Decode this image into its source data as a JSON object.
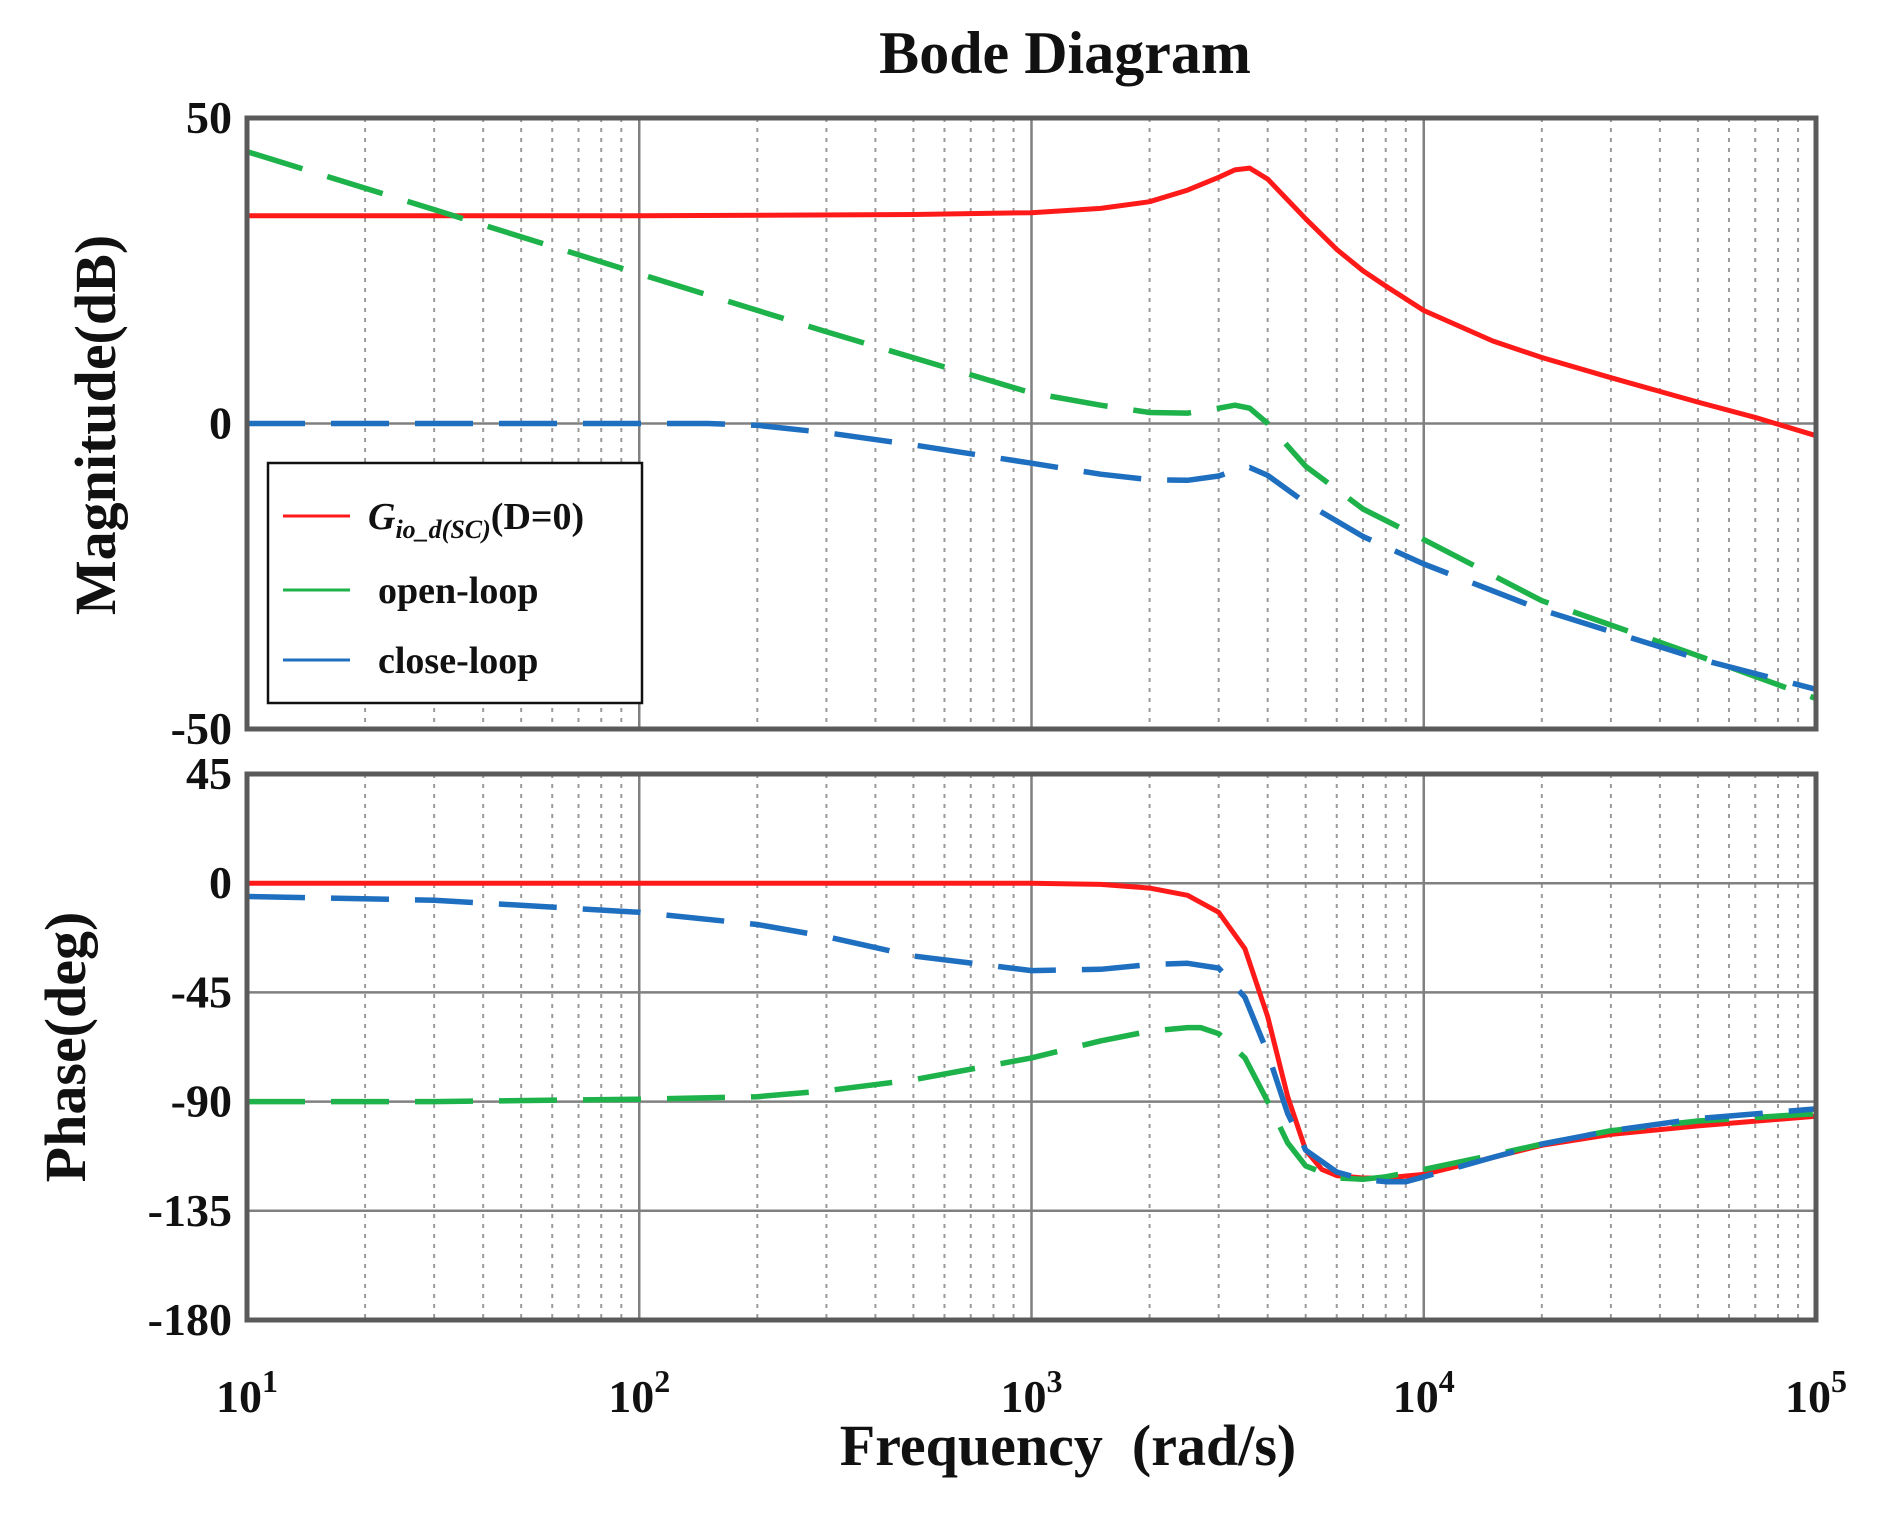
{
  "chart_data": {
    "type": "line",
    "title": "Bode Diagram",
    "xlabel": "Frequency  (rad/s)",
    "xscale": "log",
    "xlim": [
      10,
      100000
    ],
    "x_ticks": [
      {
        "base": "10",
        "exp": "1"
      },
      {
        "base": "10",
        "exp": "2"
      },
      {
        "base": "10",
        "exp": "3"
      },
      {
        "base": "10",
        "exp": "4"
      },
      {
        "base": "10",
        "exp": "5"
      }
    ],
    "colors": {
      "gio": "#ff1a1a",
      "open_loop": "#1db24a",
      "close_loop": "#1f6fc0",
      "grid": "#808080"
    },
    "legend": {
      "position": "lower-left",
      "entries": [
        {
          "series": "gio",
          "main": "G",
          "sub": "io_d(SC)",
          "rest": "(D=0)"
        },
        {
          "series": "open_loop",
          "label": "open-loop"
        },
        {
          "series": "close_loop",
          "label": "close-loop"
        }
      ]
    },
    "panels": [
      {
        "name": "magnitude",
        "ylabel": "Magnitude(dB)",
        "ylim": [
          -50,
          50
        ],
        "y_ticks": [
          "50",
          "0",
          "-50"
        ],
        "y_tick_values": [
          50,
          0,
          -50
        ],
        "series": [
          {
            "key": "gio",
            "name": "Gio_d(SC)(D=0)",
            "style": "solid",
            "x": [
              10,
              100,
              500,
              1000,
              1500,
              2000,
              2500,
              3000,
              3300,
              3600,
              4000,
              5000,
              6000,
              7000,
              8000,
              10000,
              15000,
              20000,
              30000,
              50000,
              70000,
              100000
            ],
            "y": [
              34,
              34,
              34.2,
              34.5,
              35.2,
              36.3,
              38.2,
              40.3,
              41.5,
              41.8,
              40,
              33.5,
              28.5,
              25,
              22.5,
              18.5,
              13.5,
              10.8,
              7.5,
              3.5,
              1,
              -2
            ]
          },
          {
            "key": "open_loop",
            "name": "open-loop",
            "style": "dashed",
            "x": [
              10,
              30,
              100,
              300,
              1000,
              1500,
              2000,
              2500,
              3000,
              3300,
              3600,
              4000,
              5000,
              7000,
              10000,
              20000,
              50000,
              100000
            ],
            "y": [
              44.5,
              35,
              24.5,
              15,
              5,
              3,
              1.8,
              1.7,
              2.5,
              3,
              2.5,
              0,
              -7,
              -14,
              -19,
              -29,
              -38,
              -45
            ]
          },
          {
            "key": "close_loop",
            "name": "close-loop",
            "style": "dashed",
            "x": [
              10,
              100,
              150,
              200,
              300,
              500,
              1000,
              1500,
              2000,
              2500,
              3000,
              3300,
              3600,
              4000,
              5000,
              7000,
              10000,
              20000,
              50000,
              100000
            ],
            "y": [
              0,
              0,
              0,
              -0.3,
              -1.5,
              -3.5,
              -6.5,
              -8.3,
              -9.2,
              -9.3,
              -8.6,
              -7.7,
              -7.2,
              -8.5,
              -13,
              -18.5,
              -23,
              -30.5,
              -38.5,
              -43.5
            ]
          }
        ]
      },
      {
        "name": "phase",
        "ylabel": "Phase(deg)",
        "ylim": [
          -180,
          45
        ],
        "y_ticks": [
          "45",
          "0",
          "-45",
          "-90",
          "-135",
          "-180"
        ],
        "y_tick_values": [
          45,
          0,
          -45,
          -90,
          -135,
          -180
        ],
        "series": [
          {
            "key": "gio",
            "name": "Gio_d(SC)(D=0)",
            "style": "solid",
            "x": [
              10,
              100,
              1000,
              1500,
              2000,
              2500,
              3000,
              3500,
              4000,
              4500,
              5000,
              5500,
              6000,
              7000,
              8000,
              10000,
              15000,
              20000,
              30000,
              50000,
              100000
            ],
            "y": [
              0,
              0,
              0,
              -0.5,
              -2,
              -5,
              -12,
              -27,
              -55,
              -88,
              -110,
              -118,
              -120.5,
              -121.5,
              -121.5,
              -120,
              -113,
              -108,
              -103.5,
              -100,
              -96
            ]
          },
          {
            "key": "open_loop",
            "name": "open-loop",
            "style": "dashed",
            "x": [
              10,
              30,
              100,
              200,
              300,
              500,
              1000,
              1500,
              2000,
              2500,
              2700,
              3000,
              3500,
              4000,
              4500,
              5000,
              6000,
              7000,
              8000,
              10000,
              15000,
              20000,
              30000,
              50000,
              100000
            ],
            "y": [
              -90,
              -90,
              -89,
              -88,
              -85.5,
              -81,
              -72,
              -65,
              -61,
              -59.5,
              -59.5,
              -62,
              -72,
              -90,
              -107,
              -116.5,
              -121.5,
              -122,
              -121,
              -118,
              -112,
              -107.5,
              -102,
              -98,
              -95
            ]
          },
          {
            "key": "close_loop",
            "name": "close-loop",
            "style": "dashed",
            "x": [
              10,
              30,
              100,
              200,
              300,
              500,
              1000,
              1500,
              2000,
              2500,
              3000,
              3500,
              4000,
              4500,
              5000,
              6000,
              7000,
              8000,
              9000,
              10000,
              15000,
              20000,
              30000,
              50000,
              100000
            ],
            "y": [
              -5.5,
              -7,
              -12,
              -17,
              -22,
              -30,
              -36,
              -35.5,
              -33.5,
              -33,
              -35,
              -47,
              -70,
              -95,
              -110,
              -119,
              -122,
              -123,
              -123,
              -121,
              -113,
              -107.5,
              -102,
              -97,
              -93
            ]
          }
        ]
      }
    ]
  }
}
